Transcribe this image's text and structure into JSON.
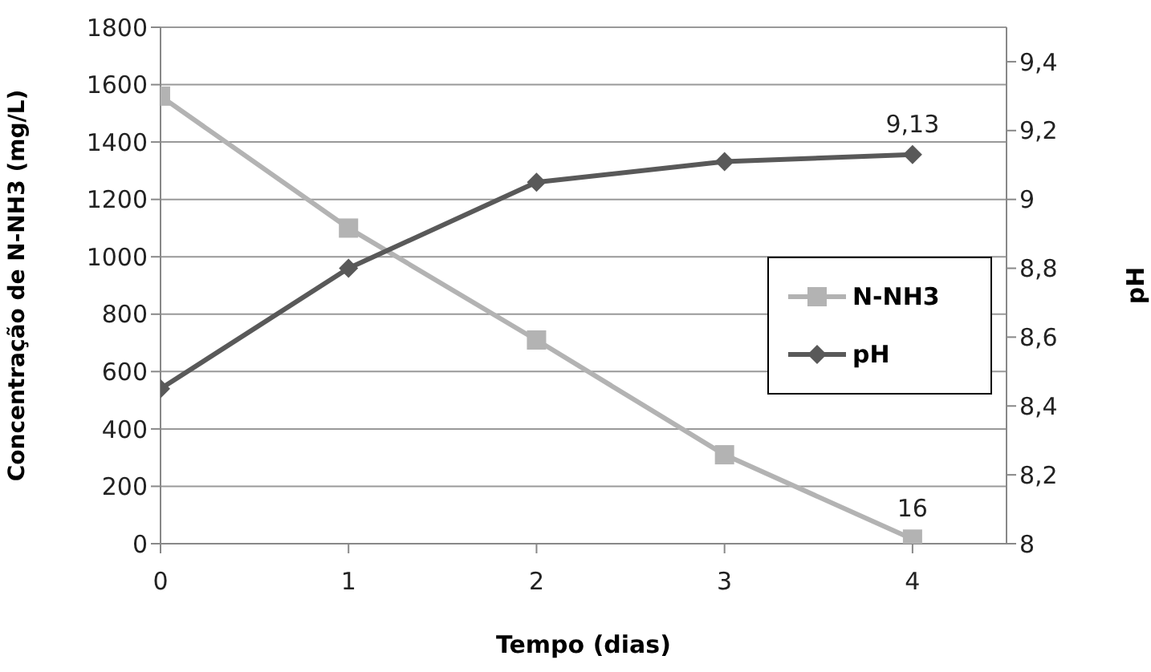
{
  "chart_data": {
    "type": "line",
    "xlabel": "Tempo (dias)",
    "ylabel": "Concentração de N-NH3 (mg/L)",
    "y2label": "pH",
    "x": [
      0,
      1,
      2,
      3,
      4
    ],
    "xlim": [
      0,
      4.5
    ],
    "xticks": [
      0,
      1,
      2,
      3,
      4
    ],
    "ylim": [
      0,
      1800
    ],
    "yticks": [
      0,
      200,
      400,
      600,
      800,
      1000,
      1200,
      1400,
      1600,
      1800
    ],
    "y2lim": [
      8,
      9.5
    ],
    "y2ticks": [
      8,
      {
        "value": 8.2,
        "label": "8,2"
      },
      {
        "value": 8.4,
        "label": "8,4"
      },
      {
        "value": 8.6,
        "label": "8,6"
      },
      {
        "value": 8.8,
        "label": "8,8"
      },
      9,
      {
        "value": 9.2,
        "label": "9,2"
      },
      {
        "value": 9.4,
        "label": "9,4"
      }
    ],
    "grid": "y",
    "legend": "right",
    "series": [
      {
        "name": "N-NH3",
        "color": "#b3b3b3",
        "marker": "square",
        "values": [
          1560,
          1100,
          710,
          310,
          16
        ],
        "value_labels": [
          null,
          null,
          null,
          null,
          "16"
        ]
      },
      {
        "name": "pH",
        "color": "#595959",
        "marker": "diamond",
        "axis": "y2",
        "values": [
          8.45,
          8.8,
          9.05,
          9.11,
          9.13
        ],
        "value_labels": [
          null,
          null,
          null,
          null,
          "9,13"
        ]
      }
    ]
  }
}
